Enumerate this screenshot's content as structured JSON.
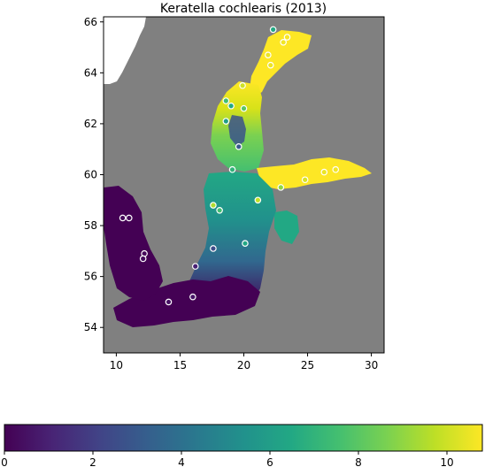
{
  "chart_data": {
    "type": "heatmap",
    "title": "Keratella cochlearis (2013)",
    "xlim": [
      9,
      31
    ],
    "ylim": [
      53,
      66.2
    ],
    "xticks": [
      10,
      15,
      20,
      25,
      30
    ],
    "yticks": [
      54,
      56,
      58,
      60,
      62,
      64,
      66
    ],
    "colorbar": {
      "colormap": "viridis",
      "range": [
        0,
        10.8
      ],
      "ticks": [
        0,
        2,
        4,
        6,
        8,
        10
      ]
    },
    "land_color": "#808080",
    "stations": [
      {
        "lon": 10.5,
        "lat": 58.3,
        "value": 0.2
      },
      {
        "lon": 11.0,
        "lat": 58.3,
        "value": 0.2
      },
      {
        "lon": 12.2,
        "lat": 56.9,
        "value": 0.2
      },
      {
        "lon": 12.1,
        "lat": 56.7,
        "value": 0.3
      },
      {
        "lon": 14.1,
        "lat": 55.0,
        "value": 0.5
      },
      {
        "lon": 16.0,
        "lat": 55.2,
        "value": 0.6
      },
      {
        "lon": 16.2,
        "lat": 56.4,
        "value": 1.0
      },
      {
        "lon": 17.6,
        "lat": 57.1,
        "value": 2.5
      },
      {
        "lon": 20.1,
        "lat": 57.3,
        "value": 6.5
      },
      {
        "lon": 17.6,
        "lat": 58.8,
        "value": 9.5
      },
      {
        "lon": 18.1,
        "lat": 58.6,
        "value": 7.5
      },
      {
        "lon": 21.1,
        "lat": 59.0,
        "value": 9.8
      },
      {
        "lon": 22.9,
        "lat": 59.5,
        "value": 9.0
      },
      {
        "lon": 24.8,
        "lat": 59.8,
        "value": 10.2
      },
      {
        "lon": 26.3,
        "lat": 60.1,
        "value": 10.5
      },
      {
        "lon": 27.2,
        "lat": 60.2,
        "value": 10.6
      },
      {
        "lon": 19.1,
        "lat": 60.2,
        "value": 7.0
      },
      {
        "lon": 19.6,
        "lat": 61.1,
        "value": 3.0
      },
      {
        "lon": 18.6,
        "lat": 62.1,
        "value": 6.0
      },
      {
        "lon": 19.0,
        "lat": 62.7,
        "value": 6.5
      },
      {
        "lon": 20.0,
        "lat": 62.6,
        "value": 8.0
      },
      {
        "lon": 18.6,
        "lat": 62.9,
        "value": 7.5
      },
      {
        "lon": 19.9,
        "lat": 63.5,
        "value": 10.0
      },
      {
        "lon": 22.1,
        "lat": 64.3,
        "value": 10.5
      },
      {
        "lon": 21.9,
        "lat": 64.7,
        "value": 10.5
      },
      {
        "lon": 23.1,
        "lat": 65.2,
        "value": 10.6
      },
      {
        "lon": 23.4,
        "lat": 65.4,
        "value": 10.7
      },
      {
        "lon": 22.3,
        "lat": 65.7,
        "value": 6.5
      }
    ]
  }
}
